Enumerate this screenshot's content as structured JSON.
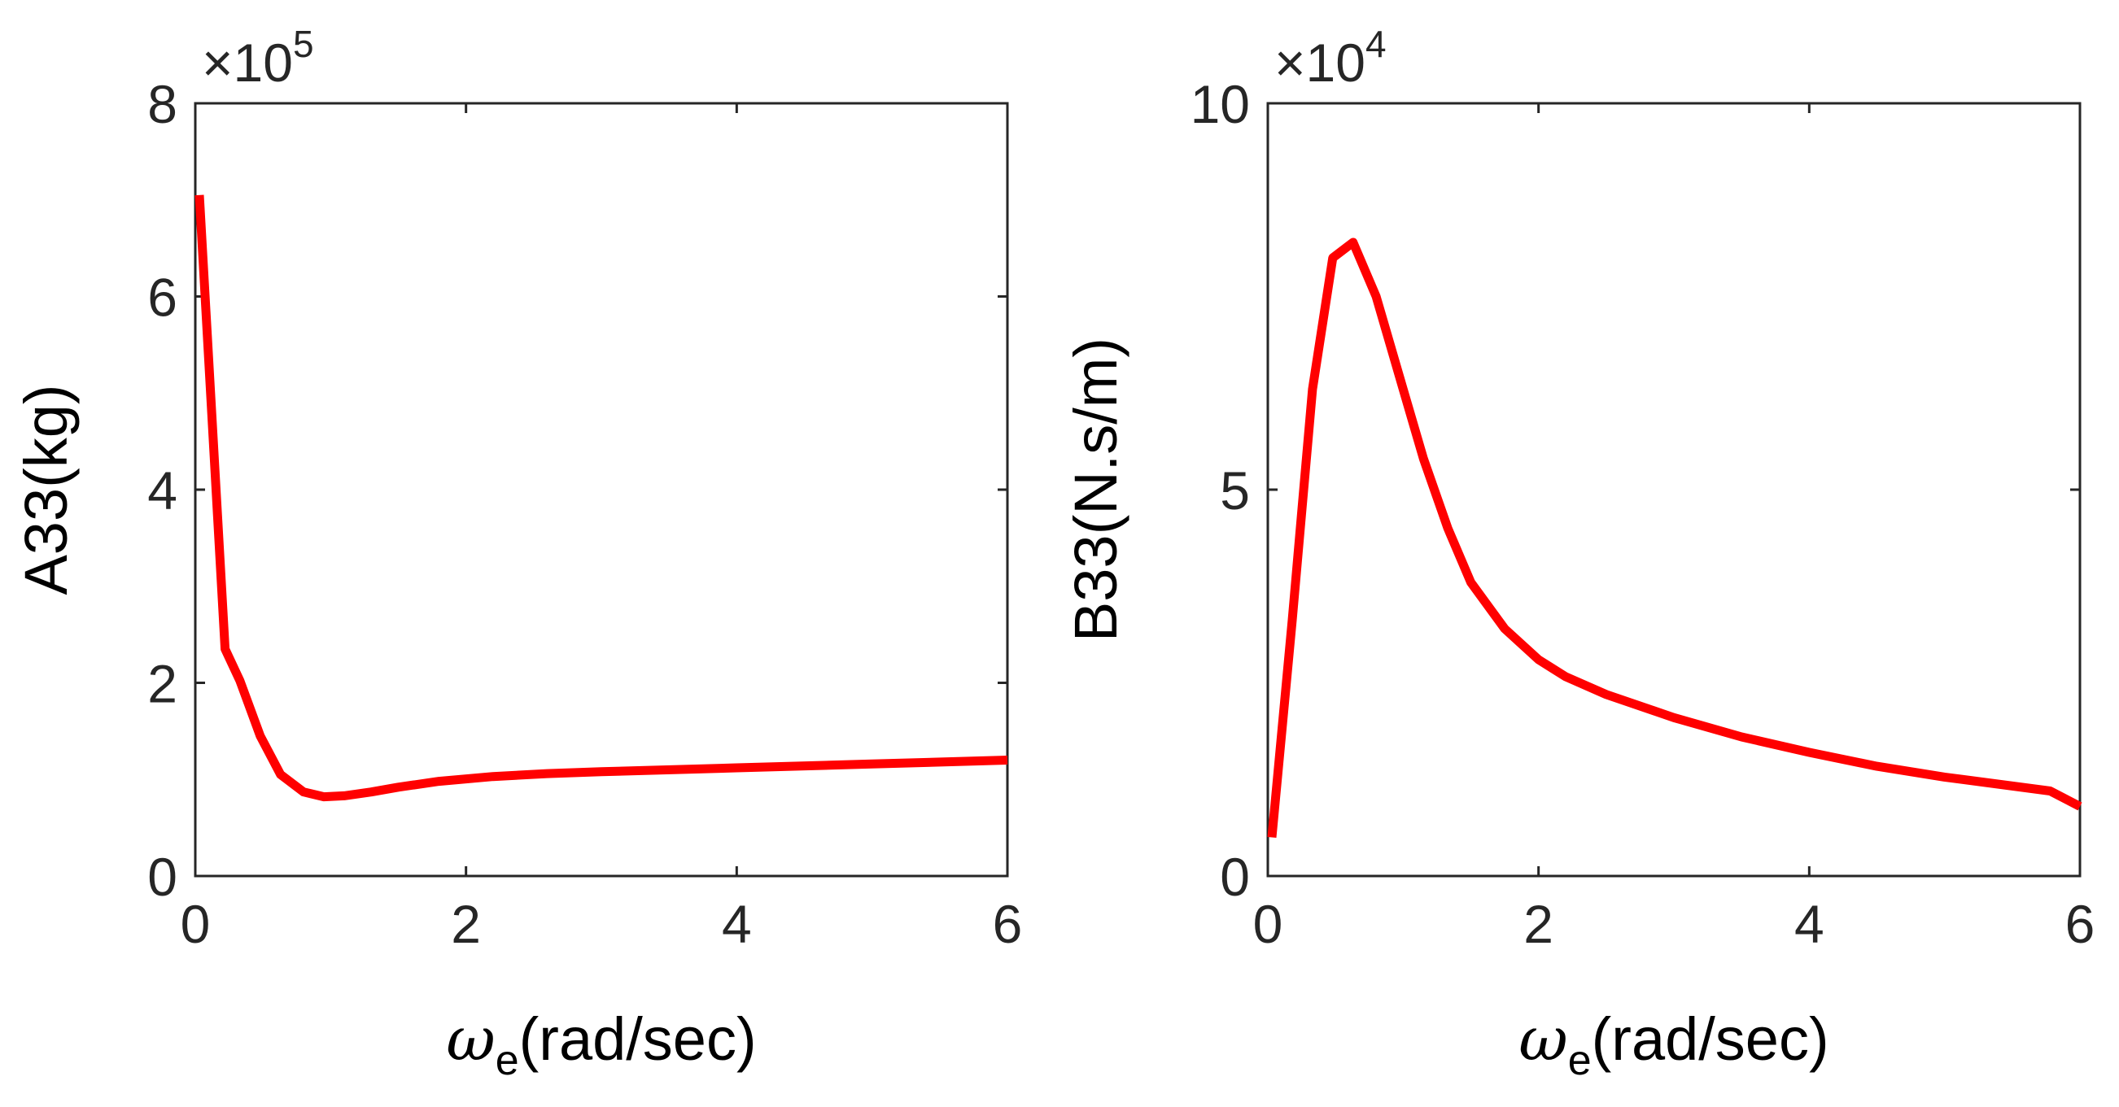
{
  "chart_data": [
    {
      "type": "line",
      "xlabel": {
        "symbol": "ω",
        "subscript": "e",
        "text": "(rad/sec)"
      },
      "ylabel": "A33(kg)",
      "exponent": {
        "prefix": "×10",
        "power": "5"
      },
      "xlim": [
        0,
        6
      ],
      "ylim": [
        0,
        8
      ],
      "xticks": [
        0,
        2,
        4,
        6
      ],
      "yticks": [
        0,
        2,
        4,
        6,
        8
      ],
      "grid": false,
      "series": [
        {
          "name": "A33",
          "color": "#ff0000",
          "x": [
            0.03,
            0.22,
            0.33,
            0.48,
            0.63,
            0.8,
            0.95,
            1.1,
            1.3,
            1.5,
            1.8,
            2.2,
            2.6,
            3.0,
            4.0,
            5.0,
            6.0
          ],
          "y": [
            7.05,
            2.35,
            2.02,
            1.45,
            1.05,
            0.87,
            0.82,
            0.83,
            0.87,
            0.92,
            0.98,
            1.03,
            1.06,
            1.08,
            1.12,
            1.16,
            1.2
          ]
        }
      ]
    },
    {
      "type": "line",
      "xlabel": {
        "symbol": "ω",
        "subscript": "e",
        "text": "(rad/sec)"
      },
      "ylabel": "B33(N.s/m)",
      "exponent": {
        "prefix": "×10",
        "power": "4"
      },
      "xlim": [
        0,
        6
      ],
      "ylim": [
        0,
        10
      ],
      "xticks": [
        0,
        2,
        4,
        6
      ],
      "yticks": [
        0,
        5,
        10
      ],
      "grid": false,
      "series": [
        {
          "name": "B33",
          "color": "#ff0000",
          "x": [
            0.03,
            0.18,
            0.33,
            0.48,
            0.63,
            0.8,
            1.0,
            1.15,
            1.33,
            1.5,
            1.75,
            2.0,
            2.2,
            2.5,
            3.0,
            3.5,
            4.0,
            4.5,
            5.0,
            5.78,
            6.0
          ],
          "y": [
            0.5,
            3.3,
            6.3,
            8.0,
            8.2,
            7.5,
            6.3,
            5.4,
            4.5,
            3.8,
            3.2,
            2.8,
            2.58,
            2.35,
            2.05,
            1.8,
            1.6,
            1.42,
            1.28,
            1.1,
            0.9
          ]
        }
      ]
    }
  ]
}
